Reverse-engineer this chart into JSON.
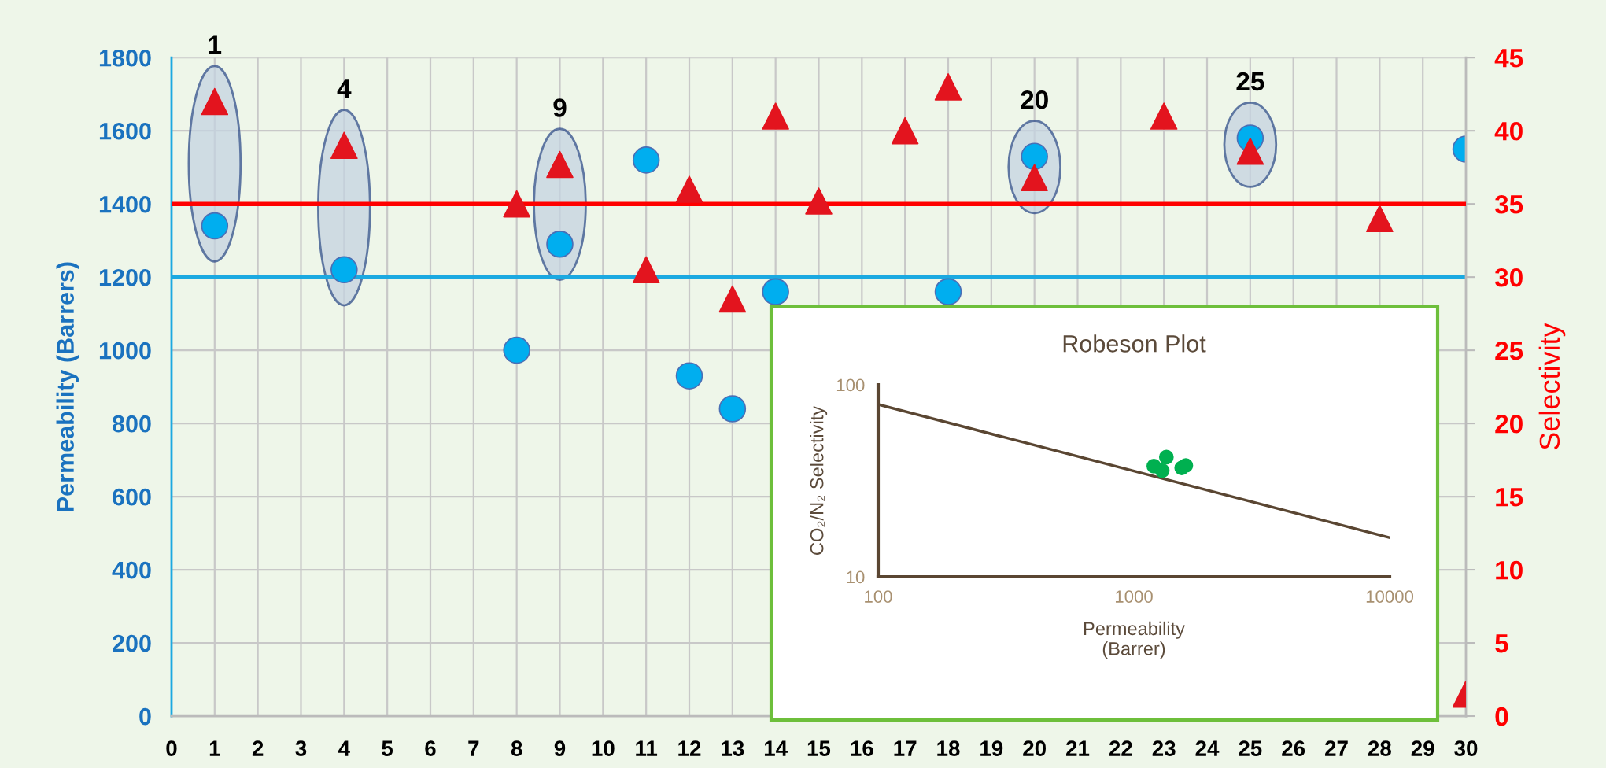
{
  "chart_data": [
    {
      "type": "scatter",
      "ylabel": "Permeability (Barrers)",
      "y2label": "Selectivity",
      "xlim": [
        0,
        30
      ],
      "xticks": [
        0,
        1,
        2,
        3,
        4,
        5,
        6,
        7,
        8,
        9,
        10,
        11,
        12,
        13,
        14,
        15,
        16,
        17,
        18,
        19,
        20,
        21,
        22,
        23,
        24,
        25,
        26,
        27,
        28,
        29,
        30
      ],
      "ylim": [
        0,
        1800
      ],
      "yticks": [
        0,
        200,
        400,
        600,
        800,
        1000,
        1200,
        1400,
        1600,
        1800
      ],
      "y2lim": [
        0,
        45
      ],
      "y2ticks": [
        0,
        5,
        10,
        15,
        20,
        25,
        30,
        35,
        40,
        45
      ],
      "grid": true,
      "series": [
        {
          "type": "scatter",
          "marker": "circle",
          "color": "#00aeef",
          "x": [
            1,
            4,
            8,
            9,
            11,
            12,
            13,
            14,
            18,
            20,
            25,
            30
          ],
          "values": [
            1340,
            1220,
            1000,
            1290,
            1520,
            930,
            840,
            1160,
            1160,
            1530,
            1580,
            1550
          ]
        },
        {
          "type": "scatter",
          "marker": "triangle",
          "axis": "y2",
          "color": "#e3141e",
          "x": [
            1,
            4,
            8,
            9,
            11,
            12,
            13,
            14,
            15,
            17,
            18,
            20,
            23,
            25,
            28,
            30
          ],
          "values": [
            42,
            39,
            35,
            37.7,
            30.5,
            36,
            28.5,
            41,
            35.2,
            40,
            43,
            36.8,
            41,
            38.6,
            34,
            1.5
          ]
        }
      ],
      "ref_lines": [
        {
          "axis": "y",
          "value": 1200,
          "color": "#1ba9e1"
        },
        {
          "axis": "y2",
          "value": 35,
          "color": "#ff0000"
        }
      ],
      "annotations": [
        {
          "text": "1",
          "x": 1,
          "y": 1680
        },
        {
          "text": "4",
          "x": 4,
          "y": 1560
        },
        {
          "text": "9",
          "x": 9,
          "y": 1508
        },
        {
          "text": "20",
          "x": 20,
          "y": 1530
        },
        {
          "text": "25",
          "x": 25,
          "y": 1580
        }
      ]
    },
    {
      "type": "scatter",
      "title": "Robeson Plot",
      "xlabel": "Permeability\n(Barrer)",
      "ylabel": "CO₂/N₂ Selectivity",
      "log": "xy",
      "xlim": [
        100,
        10000
      ],
      "xticks": [
        100,
        1000,
        10000
      ],
      "ylim": [
        10,
        100
      ],
      "yticks": [
        10,
        100
      ],
      "series": [
        {
          "type": "line",
          "color": "#5a4632",
          "x": [
            100,
            10000
          ],
          "values": [
            79,
            16
          ]
        },
        {
          "type": "scatter",
          "marker": "circle",
          "color": "#00b050",
          "x": [
            1197,
            1340,
            1291,
            1538,
            1596
          ],
          "values": [
            37.7,
            42,
            35.7,
            36.9,
            38
          ]
        }
      ]
    }
  ]
}
